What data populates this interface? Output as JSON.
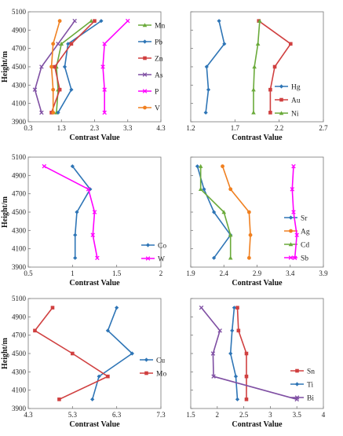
{
  "chart_data": [
    {
      "type": "line",
      "title": "",
      "xlabel": "Contrast Value",
      "ylabel": "Height/m",
      "xlim": [
        0.3,
        4.3
      ],
      "ylim": [
        3900,
        5100
      ],
      "xticks": [
        "0.3",
        "1.3",
        "2.3",
        "3.3",
        "4.3"
      ],
      "yticks": [
        "3900",
        "4100",
        "4300",
        "4500",
        "4700",
        "4900",
        "5100"
      ],
      "y": [
        5000,
        4750,
        4500,
        4250,
        4000
      ],
      "series": [
        {
          "name": "Mn",
          "color": "#6aaa3a",
          "marker": "triangle",
          "values": [
            2.2,
            1.3,
            1.15,
            1.2,
            1.15
          ]
        },
        {
          "name": "Pb",
          "color": "#2e75b6",
          "marker": "diamond",
          "values": [
            2.5,
            1.5,
            1.4,
            1.6,
            1.2
          ]
        },
        {
          "name": "Zn",
          "color": "#d04040",
          "marker": "square",
          "values": [
            2.3,
            1.6,
            1.1,
            1.25,
            1.0
          ]
        },
        {
          "name": "As",
          "color": "#7f4fa3",
          "marker": "x",
          "values": [
            1.7,
            1.2,
            0.7,
            0.5,
            0.7
          ]
        },
        {
          "name": "P",
          "color": "#ff00ff",
          "marker": "x",
          "values": [
            3.3,
            2.6,
            2.55,
            2.6,
            2.6
          ]
        },
        {
          "name": "V",
          "color": "#f08020",
          "marker": "circle",
          "values": [
            1.25,
            1.05,
            1.0,
            1.05,
            1.05
          ]
        }
      ]
    },
    {
      "type": "line",
      "title": "",
      "xlabel": "Contrast Value",
      "ylabel": "",
      "xlim": [
        1.2,
        2.7
      ],
      "ylim": [
        3900,
        5100
      ],
      "xticks": [
        "1.2",
        "1.7",
        "2.2",
        "2.7"
      ],
      "yticks": [],
      "y": [
        5000,
        4750,
        4500,
        4250,
        4000
      ],
      "series": [
        {
          "name": "Hg",
          "color": "#2e75b6",
          "marker": "diamond",
          "values": [
            1.52,
            1.58,
            1.38,
            1.4,
            1.37
          ]
        },
        {
          "name": "Au",
          "color": "#d04040",
          "marker": "square",
          "values": [
            1.97,
            2.33,
            2.15,
            2.1,
            2.1
          ]
        },
        {
          "name": "Ni",
          "color": "#6aaa3a",
          "marker": "triangle",
          "values": [
            1.98,
            1.96,
            1.92,
            1.91,
            1.91
          ]
        }
      ]
    },
    {
      "type": "line",
      "title": "",
      "xlabel": "Contrast Value",
      "ylabel": "Height/m",
      "xlim": [
        0.5,
        2.0
      ],
      "ylim": [
        3900,
        5100
      ],
      "xticks": [
        "0.5",
        "1",
        "1.5",
        "2"
      ],
      "yticks": [
        "3900",
        "4100",
        "4300",
        "4500",
        "4700",
        "4900",
        "5100"
      ],
      "y": [
        5000,
        4750,
        4500,
        4250,
        4000
      ],
      "series": [
        {
          "name": "Co",
          "color": "#2e75b6",
          "marker": "diamond",
          "values": [
            1.0,
            1.2,
            1.05,
            1.03,
            1.03
          ]
        },
        {
          "name": "W",
          "color": "#ff00ff",
          "marker": "x",
          "values": [
            0.68,
            1.18,
            1.25,
            1.23,
            1.28
          ]
        }
      ]
    },
    {
      "type": "line",
      "title": "",
      "xlabel": "Contrast Value",
      "ylabel": "",
      "xlim": [
        1.9,
        3.9
      ],
      "ylim": [
        3900,
        5100
      ],
      "xticks": [
        "1.9",
        "2.4",
        "2.9",
        "3.4",
        "3.9"
      ],
      "yticks": [],
      "y": [
        5000,
        4750,
        4500,
        4250,
        4000
      ],
      "series": [
        {
          "name": "Sr",
          "color": "#2e75b6",
          "marker": "diamond",
          "values": [
            2.0,
            2.1,
            2.25,
            2.5,
            2.25
          ]
        },
        {
          "name": "Ag",
          "color": "#f08020",
          "marker": "circle",
          "values": [
            2.38,
            2.5,
            2.78,
            2.8,
            2.78
          ]
        },
        {
          "name": "Cd",
          "color": "#6aaa3a",
          "marker": "triangle",
          "values": [
            2.05,
            2.05,
            2.4,
            2.5,
            2.5
          ]
        },
        {
          "name": "Sb",
          "color": "#ff00ff",
          "marker": "x",
          "values": [
            3.45,
            3.43,
            3.45,
            3.5,
            3.47
          ]
        }
      ]
    },
    {
      "type": "line",
      "title": "",
      "xlabel": "Contrast Value",
      "ylabel": "Height/m",
      "xlim": [
        4.3,
        7.3
      ],
      "ylim": [
        3900,
        5100
      ],
      "xticks": [
        "4.3",
        "5.3",
        "6.3",
        "7.3"
      ],
      "yticks": [
        "3900",
        "4100",
        "4300",
        "4500",
        "4700",
        "4900",
        "5100"
      ],
      "y": [
        5000,
        4750,
        4500,
        4250,
        4000
      ],
      "series": [
        {
          "name": "Cu",
          "color": "#2e75b6",
          "marker": "diamond",
          "values": [
            6.3,
            6.1,
            6.65,
            5.9,
            5.75
          ]
        },
        {
          "name": "Mo",
          "color": "#d04040",
          "marker": "square",
          "values": [
            4.85,
            4.45,
            5.3,
            6.1,
            5.0
          ]
        }
      ]
    },
    {
      "type": "line",
      "title": "",
      "xlabel": "Contrast Value",
      "ylabel": "",
      "xlim": [
        1.5,
        4.0
      ],
      "ylim": [
        3900,
        5100
      ],
      "xticks": [
        "1.5",
        "2",
        "2.5",
        "3",
        "3.5",
        "4"
      ],
      "yticks": [],
      "y": [
        5000,
        4750,
        4500,
        4250,
        4000
      ],
      "series": [
        {
          "name": "Sn",
          "color": "#d04040",
          "marker": "square",
          "values": [
            2.38,
            2.4,
            2.55,
            2.55,
            2.55
          ]
        },
        {
          "name": "Ti",
          "color": "#2e75b6",
          "marker": "diamond",
          "values": [
            2.32,
            2.28,
            2.25,
            2.35,
            2.38
          ]
        },
        {
          "name": "Bi",
          "color": "#7f4fa3",
          "marker": "x",
          "values": [
            1.7,
            2.05,
            1.92,
            1.93,
            3.5
          ]
        }
      ]
    }
  ]
}
